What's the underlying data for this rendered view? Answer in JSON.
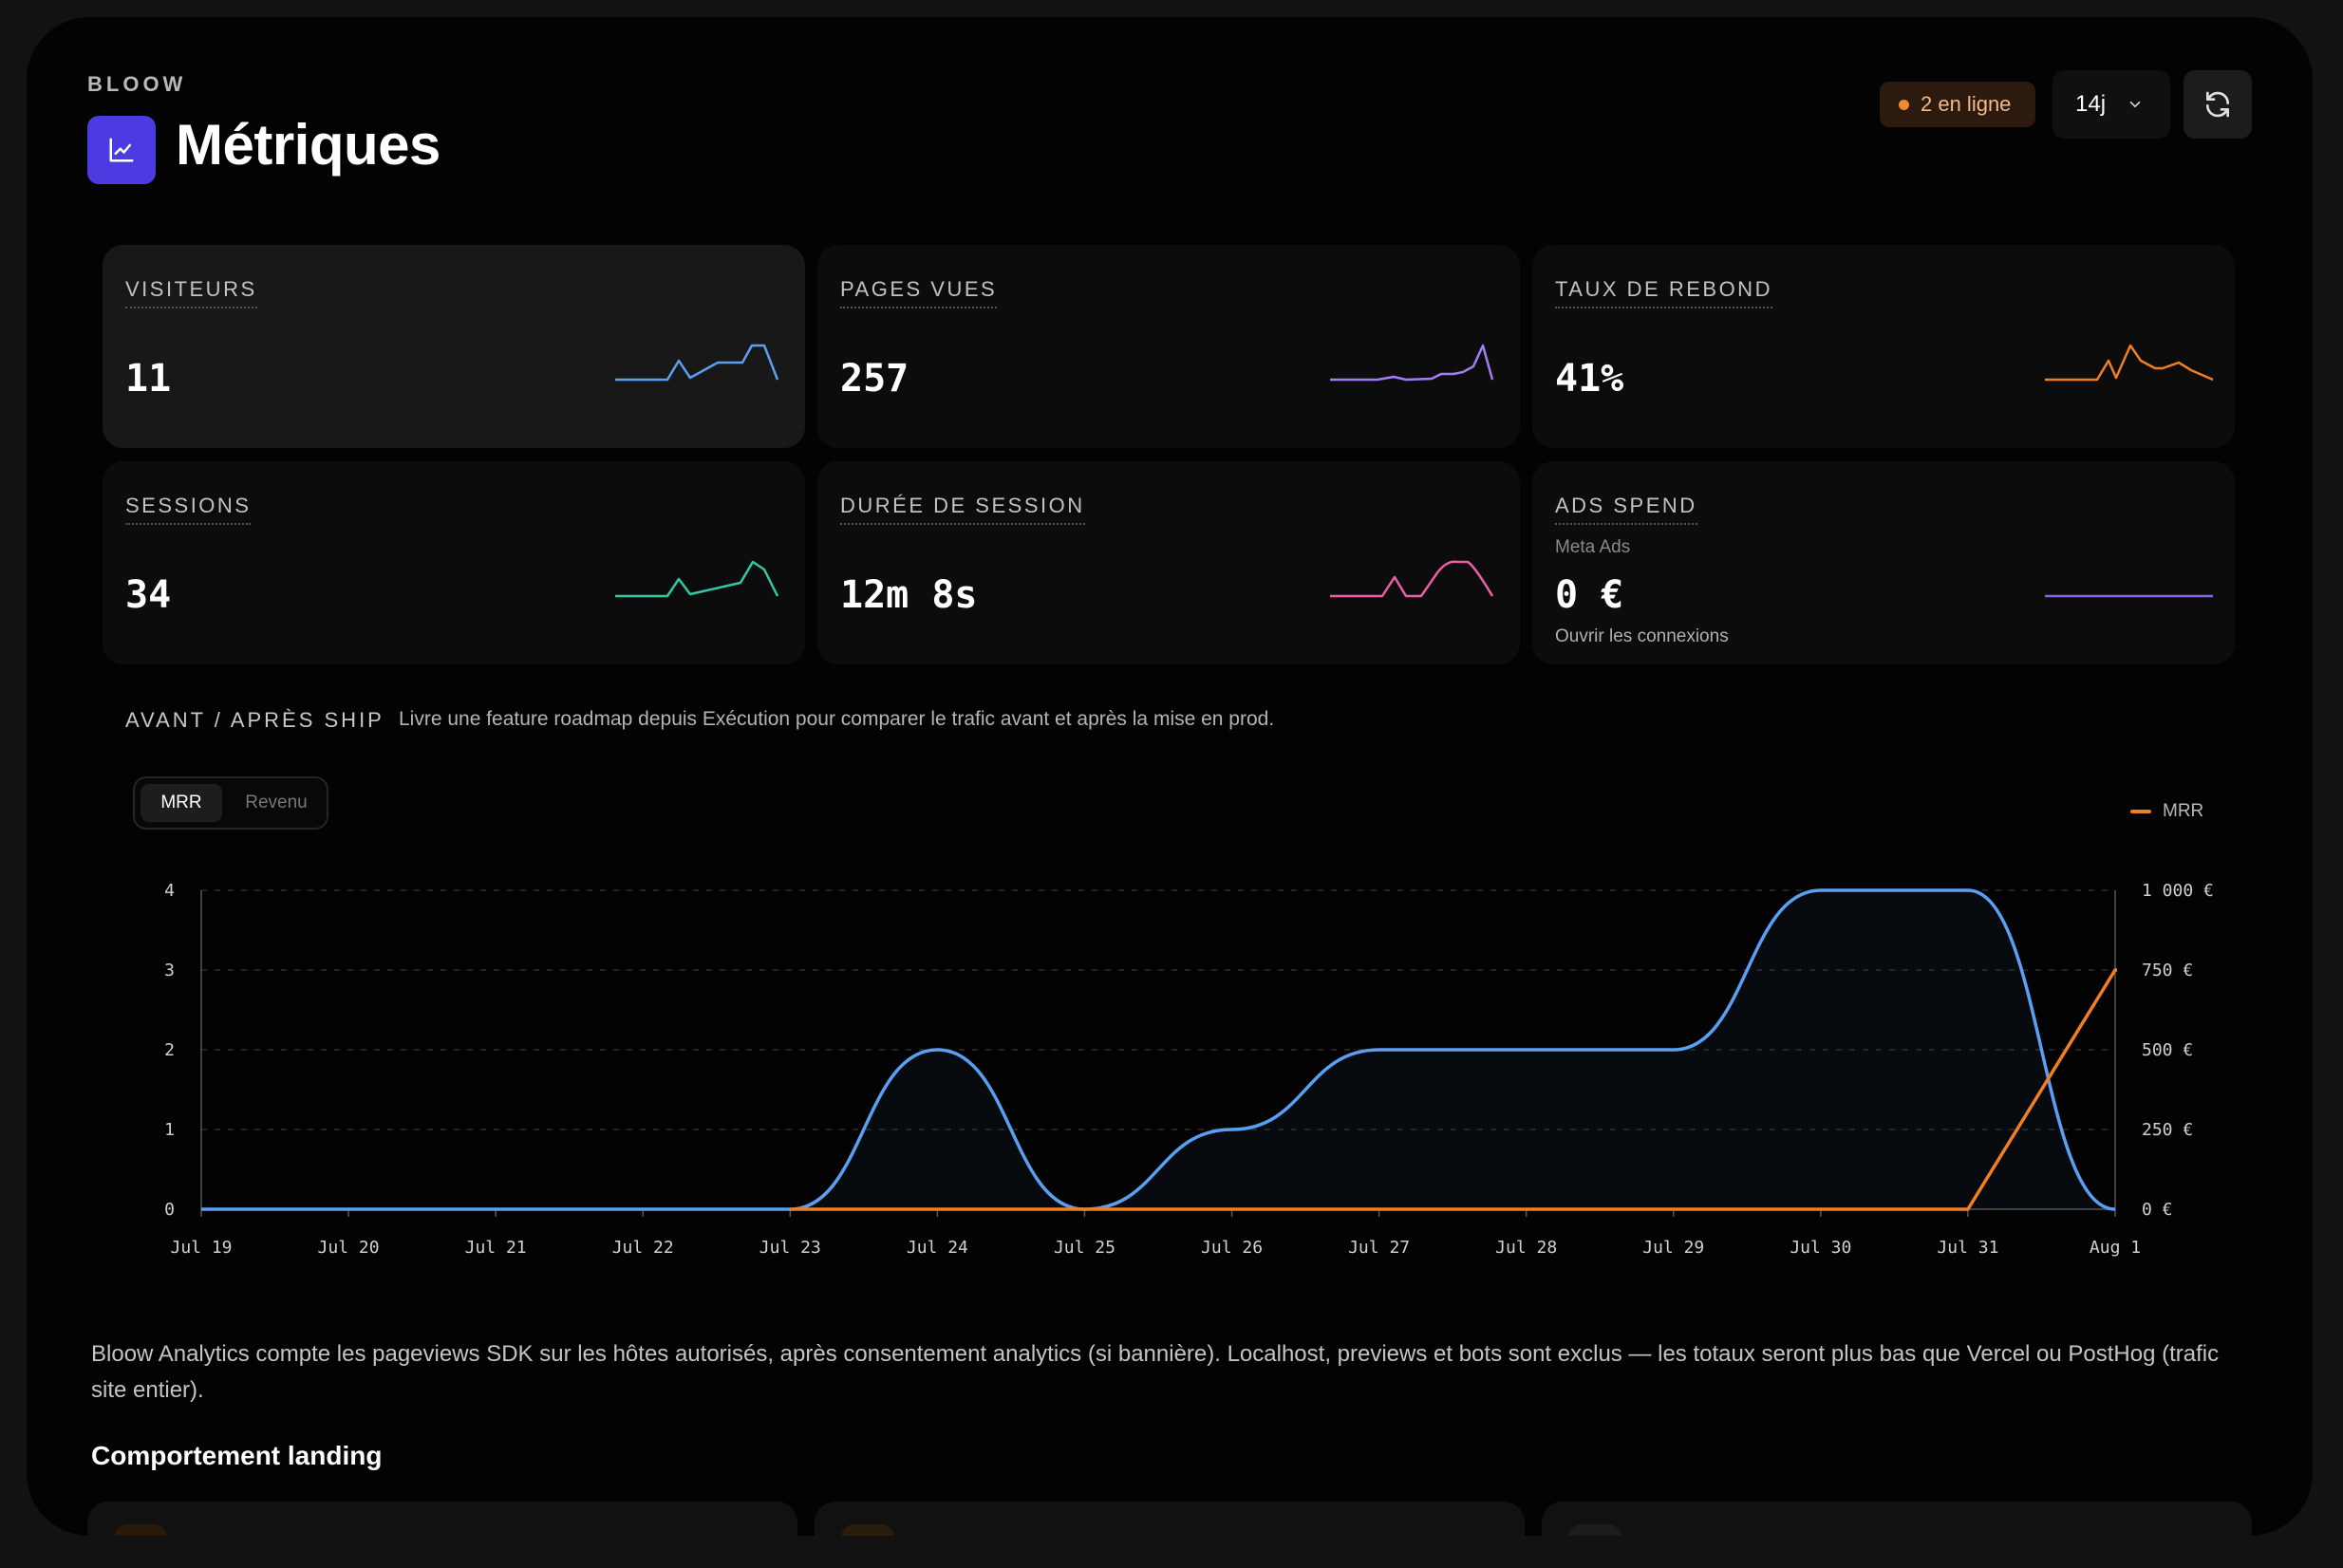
{
  "header": {
    "brand": "BLOOW",
    "title": "Métriques",
    "online_badge": "2 en ligne",
    "range": "14j"
  },
  "colors": {
    "accent": "#4b3be0",
    "visitors": "#5a9ff2",
    "pageviews": "#a47cf5",
    "bounce": "#f07f24",
    "sessions": "#2ec9a4",
    "duration": "#ec5fa5",
    "ads": "#8a64e8",
    "mrr": "#f07f24"
  },
  "stats": [
    {
      "label": "VISITEURS",
      "value": "11"
    },
    {
      "label": "PAGES VUES",
      "value": "257"
    },
    {
      "label": "TAUX DE REBOND",
      "value": "41%"
    },
    {
      "label": "SESSIONS",
      "value": "34"
    },
    {
      "label": "DURÉE DE SESSION",
      "value": "12m 8s"
    },
    {
      "label": "ADS SPEND",
      "sub": "Meta Ads",
      "value": "0 €",
      "link": "Ouvrir les connexions"
    }
  ],
  "ship": {
    "title": "AVANT / APRÈS SHIP",
    "description": "Livre une feature roadmap depuis Exécution pour comparer le trafic avant et après la mise en prod."
  },
  "toggle": {
    "options": [
      "MRR",
      "Revenu"
    ],
    "selected": "MRR"
  },
  "legend": {
    "mrr": "MRR"
  },
  "chart_data": {
    "type": "line",
    "categories": [
      "Jul 19",
      "Jul 20",
      "Jul 21",
      "Jul 22",
      "Jul 23",
      "Jul 24",
      "Jul 25",
      "Jul 26",
      "Jul 27",
      "Jul 28",
      "Jul 29",
      "Jul 30",
      "Jul 31",
      "Aug 1"
    ],
    "series": [
      {
        "axis": "left",
        "values": [
          0,
          0,
          0,
          0,
          0,
          2,
          0,
          1,
          2,
          2,
          2,
          4,
          4,
          0
        ]
      },
      {
        "name": "MRR",
        "axis": "right",
        "values": [
          0,
          0,
          0,
          0,
          0,
          0,
          0,
          0,
          0,
          0,
          0,
          0,
          0,
          750
        ]
      }
    ],
    "left_ticks": [
      "0",
      "1",
      "2",
      "3",
      "4"
    ],
    "right_ticks": [
      "0 €",
      "250 €",
      "500 €",
      "750 €",
      "1 000 €"
    ],
    "ylim_left": [
      0,
      4
    ],
    "ylim_right": [
      0,
      1000
    ],
    "grid": true,
    "legend_position": "top-right"
  },
  "info": "Bloow Analytics compte les pageviews SDK sur les hôtes autorisés, après consentement analytics (si bannière). Localhost, previews et bots sont exclus — les totaux seront plus bas que Vercel ou PostHog (trafic site entier).",
  "landing": {
    "title": "Comportement landing"
  }
}
